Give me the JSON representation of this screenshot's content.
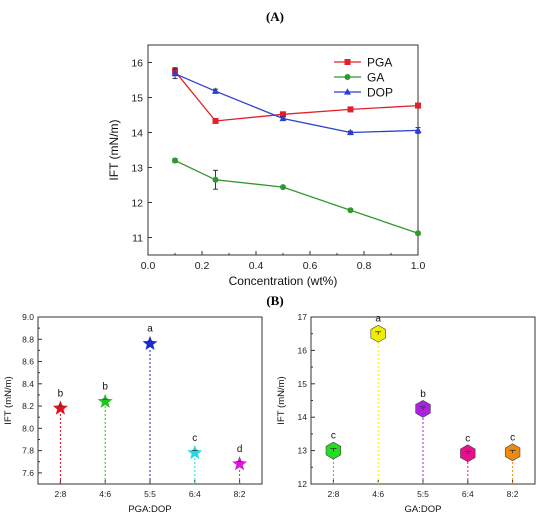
{
  "chart_data": [
    {
      "panel_label": "(A)",
      "type": "line",
      "xlabel": "Concentration (wt%)",
      "ylabel": "IFT (mN/m)",
      "xlim": [
        0.0,
        1.0
      ],
      "ylim": [
        10.5,
        16.5
      ],
      "xticks": [
        "0.0",
        "0.2",
        "0.4",
        "0.6",
        "0.8",
        "1.0"
      ],
      "yticks": [
        "11",
        "12",
        "13",
        "14",
        "15",
        "16"
      ],
      "legend_position": "top-right",
      "x": [
        0.1,
        0.25,
        0.5,
        0.75,
        1.0
      ],
      "series": [
        {
          "name": "PGA",
          "color": "#e0202a",
          "marker": "square",
          "values": [
            15.75,
            14.33,
            14.52,
            14.66,
            14.77
          ],
          "errors": [
            0.1,
            0.03,
            0.05,
            0.03,
            0.05
          ]
        },
        {
          "name": "GA",
          "color": "#2f9a2f",
          "marker": "circle",
          "values": [
            13.2,
            12.65,
            12.44,
            11.78,
            11.12
          ],
          "errors": [
            0.06,
            0.27,
            0.03,
            0.04,
            0.04
          ]
        },
        {
          "name": "DOP",
          "color": "#2b3fd1",
          "marker": "triangle",
          "values": [
            15.68,
            15.18,
            14.4,
            14.0,
            14.06
          ],
          "errors": [
            0.14,
            0.06,
            0.05,
            0.04,
            0.08
          ]
        }
      ]
    },
    {
      "panel_label": "(B)",
      "type": "scatter",
      "xlabel": "PGA:DOP",
      "ylabel": "IFT (mN/m)",
      "ylim": [
        7.5,
        9.0
      ],
      "yticks": [
        "7.6",
        "7.8",
        "8.0",
        "8.2",
        "8.4",
        "8.6",
        "8.8",
        "9.0"
      ],
      "categories": [
        "2:8",
        "4:6",
        "5:5",
        "6:4",
        "8:2"
      ],
      "values": [
        8.18,
        8.24,
        8.76,
        7.78,
        7.68
      ],
      "labels": [
        "b",
        "b",
        "a",
        "c",
        "d"
      ],
      "colors": [
        "#e0101c",
        "#22c422",
        "#1a2ad0",
        "#22d8e8",
        "#d81ad8"
      ],
      "marker": "star"
    },
    {
      "type": "scatter",
      "xlabel": "GA:DOP",
      "ylabel": "IFT (mN/m)",
      "ylim": [
        12.0,
        17.0
      ],
      "yticks": [
        "12",
        "13",
        "14",
        "15",
        "16",
        "17"
      ],
      "categories": [
        "2:8",
        "4:6",
        "5:5",
        "6:4",
        "8:2"
      ],
      "values": [
        13.0,
        16.5,
        14.25,
        12.92,
        12.95
      ],
      "labels": [
        "c",
        "a",
        "b",
        "c",
        "c"
      ],
      "colors": [
        "#22dd22",
        "#eeee00",
        "#aa22dd",
        "#e8108c",
        "#ee8a10"
      ],
      "marker": "hexagon"
    }
  ]
}
